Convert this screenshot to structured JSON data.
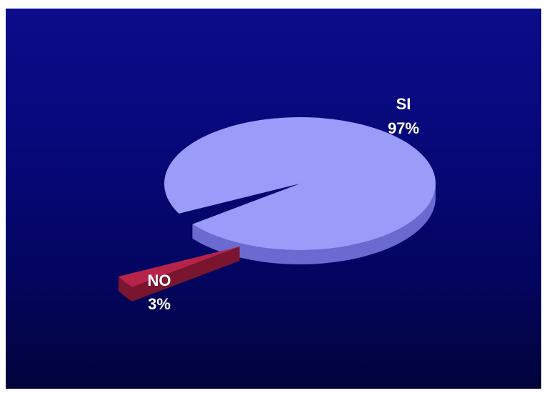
{
  "chart_data": {
    "type": "pie",
    "style": "3d",
    "exploded": "NO",
    "slices": [
      {
        "label": "SI",
        "value": 97,
        "value_label": "97%",
        "color": "#9b9bfa",
        "side_color": "#6a6ad0"
      },
      {
        "label": "NO",
        "value": 3,
        "value_label": "3%",
        "color": "#b8234a",
        "side_color": "#7a1530"
      }
    ],
    "background": [
      "#0b0d8a",
      "#02033a"
    ]
  }
}
